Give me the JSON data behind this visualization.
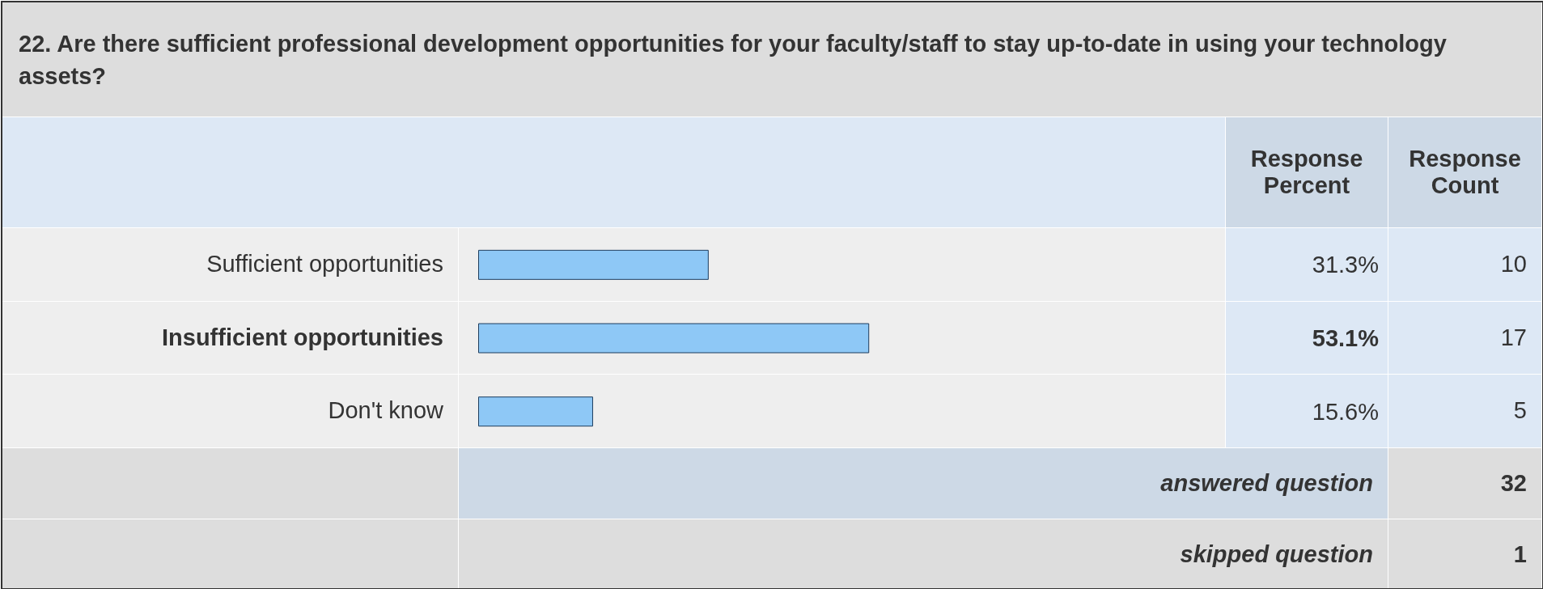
{
  "chart_data": {
    "type": "bar",
    "orientation": "horizontal",
    "title": "22. Are there sufficient professional development opportunities for your faculty/staff to stay up-to-date in using your technology assets?",
    "categories": [
      "Sufficient opportunities",
      "Insufficient opportunities",
      "Don't know"
    ],
    "values": [
      31.3,
      53.1,
      15.6
    ],
    "value_labels": [
      "31.3%",
      "53.1%",
      "15.6%"
    ],
    "color": "#8ec8f6",
    "tick_labels": false,
    "grid": false,
    "annotations": [
      "Response Percent",
      "Response Count",
      "10",
      "17",
      "5",
      "answered question",
      "32",
      "skipped question",
      "1"
    ]
  }
}
